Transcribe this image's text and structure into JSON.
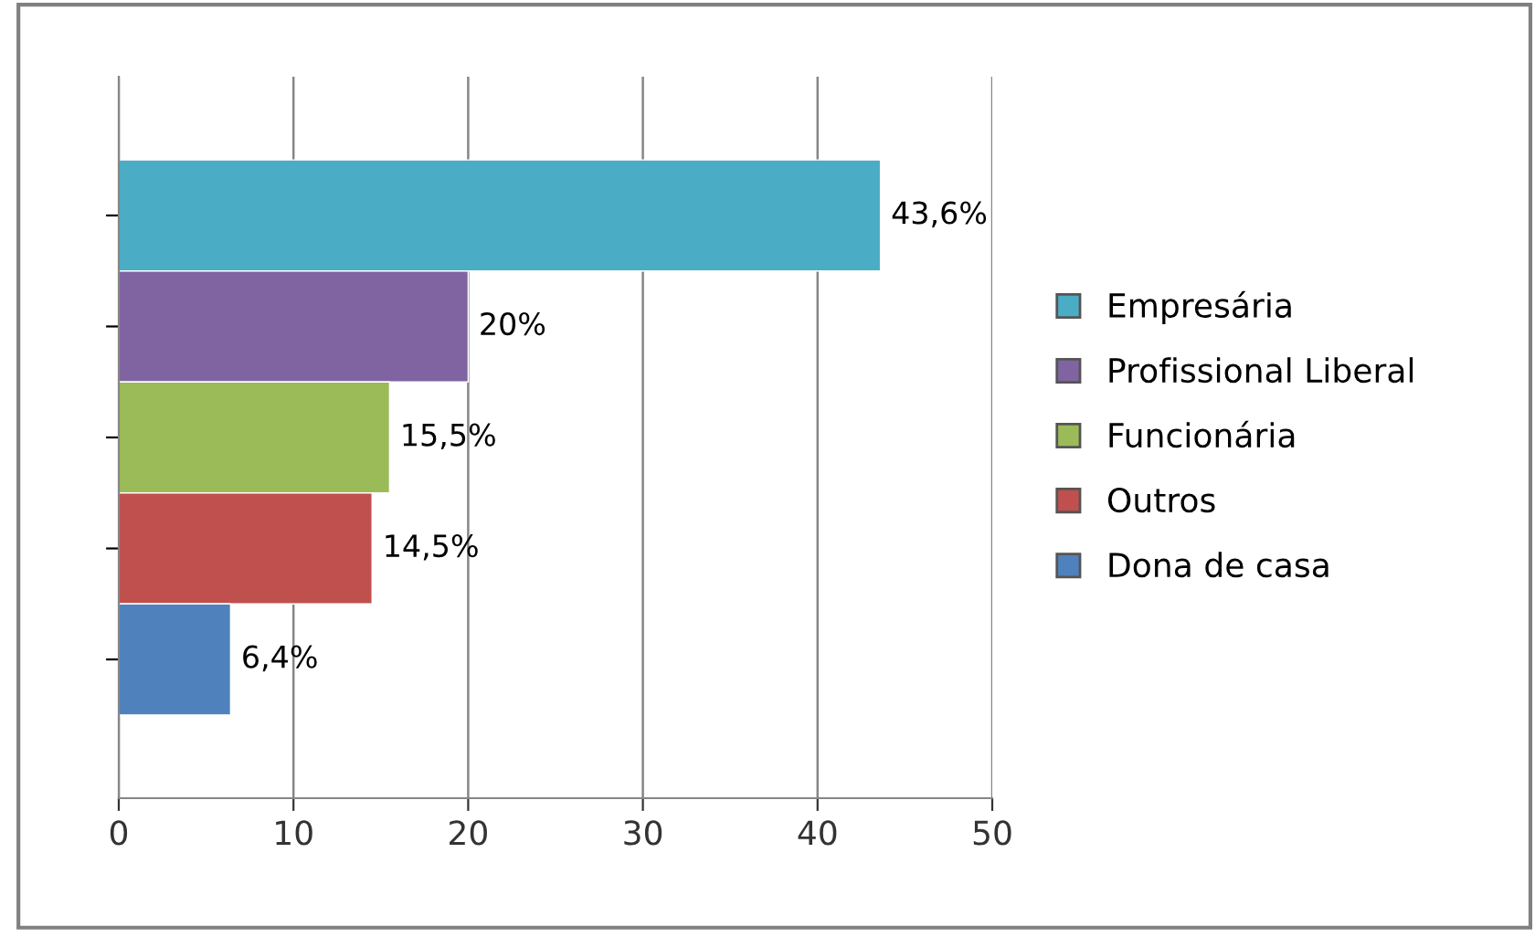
{
  "chart_data": {
    "type": "bar",
    "orientation": "horizontal",
    "categories": [
      null,
      null,
      null,
      null,
      null
    ],
    "series": [
      {
        "name": "Empresária",
        "color": "#4bacc6",
        "values": [
          43.6,
          null,
          null,
          null,
          null
        ],
        "value_labels": [
          "43,6%",
          null,
          null,
          null,
          null
        ]
      },
      {
        "name": "Profissional Liberal",
        "color": "#8064a2",
        "values": [
          null,
          20,
          null,
          null,
          null
        ],
        "value_labels": [
          null,
          "20%",
          null,
          null,
          null
        ]
      },
      {
        "name": "Funcionária",
        "color": "#9bbb59",
        "values": [
          null,
          null,
          15.5,
          null,
          null
        ],
        "value_labels": [
          null,
          null,
          "15,5%",
          null,
          null
        ]
      },
      {
        "name": "Outros",
        "color": "#c0504d",
        "values": [
          null,
          null,
          null,
          14.5,
          null
        ],
        "value_labels": [
          null,
          null,
          null,
          "14,5%",
          null
        ]
      },
      {
        "name": "Dona de casa",
        "color": "#4f81bd",
        "values": [
          null,
          null,
          null,
          null,
          6.4
        ],
        "value_labels": [
          null,
          null,
          null,
          null,
          "6,4%"
        ]
      }
    ],
    "xlim": [
      0,
      50
    ],
    "xticks": [
      0,
      10,
      20,
      30,
      40,
      50
    ],
    "grid": "x",
    "legend": "right",
    "tick_labels": "x"
  }
}
